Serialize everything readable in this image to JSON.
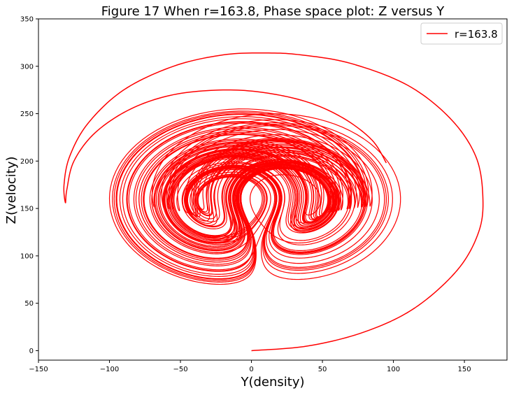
{
  "chart_data": {
    "type": "line",
    "title": "Figure 17 When r=163.8, Phase space plot: Z versus Y",
    "xlabel": "Y(density)",
    "ylabel": "Z(velocity)",
    "xlim": [
      -150,
      180
    ],
    "ylim": [
      -10,
      350
    ],
    "xticks": [
      -150,
      -100,
      -50,
      0,
      50,
      100,
      150
    ],
    "yticks": [
      0,
      50,
      100,
      150,
      200,
      250,
      300,
      350
    ],
    "grid": false,
    "legend_position": "top-right",
    "series": [
      {
        "name": "r=163.8",
        "color": "#ff0000",
        "description_points": {
          "outer_spiral": [
            [
              0,
              0
            ],
            [
              40,
              5
            ],
            [
              80,
              20
            ],
            [
              115,
              45
            ],
            [
              145,
              85
            ],
            [
              160,
              125
            ],
            [
              163,
              162
            ],
            [
              158,
              205
            ],
            [
              140,
              245
            ],
            [
              110,
              280
            ],
            [
              70,
              303
            ],
            [
              35,
              312
            ],
            [
              10,
              314
            ],
            [
              -20,
              312
            ],
            [
              -55,
              300
            ],
            [
              -90,
              275
            ],
            [
              -115,
              240
            ],
            [
              -128,
              205
            ],
            [
              -132,
              175
            ],
            [
              -131,
              156
            ],
            [
              -130,
              170
            ],
            [
              -125,
              200
            ],
            [
              -110,
              230
            ],
            [
              -85,
              255
            ],
            [
              -55,
              270
            ],
            [
              -20,
              275
            ],
            [
              10,
              272
            ],
            [
              40,
              262
            ],
            [
              65,
              245
            ],
            [
              85,
              222
            ],
            [
              95,
              198
            ]
          ],
          "right_lobe_center": [
            50,
            162
          ],
          "left_lobe_center": [
            -45,
            162
          ],
          "right_lobe_extent": [
            [
              0,
              105
            ],
            [
              80,
              235
            ]
          ],
          "left_lobe_extent": [
            [
              -100,
              90
            ],
            [
              40,
              245
            ]
          ],
          "attractor_bounds": {
            "xmin": -100,
            "xmax": 105,
            "ymin": 70,
            "ymax": 255
          }
        }
      }
    ]
  }
}
